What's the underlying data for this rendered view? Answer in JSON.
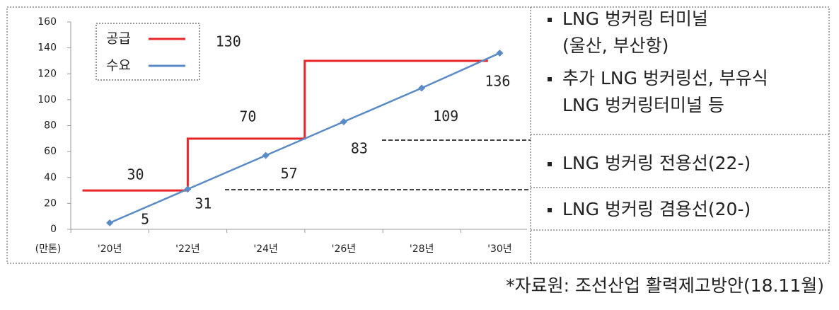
{
  "chart_data": {
    "type": "line",
    "y_unit_label": "(만톤)",
    "xlim": [
      19,
      30.7
    ],
    "xticks": [
      {
        "value": 20,
        "label": "'20년"
      },
      {
        "value": 22,
        "label": "'22년"
      },
      {
        "value": 24,
        "label": "'24년"
      },
      {
        "value": 26,
        "label": "'26년"
      },
      {
        "value": 28,
        "label": "'28년"
      },
      {
        "value": 30,
        "label": "'30년"
      }
    ],
    "ylim": [
      0,
      160
    ],
    "yticks": [
      0,
      20,
      40,
      60,
      80,
      100,
      120,
      140,
      160
    ],
    "legend": "top-left",
    "series": [
      {
        "name": "공급",
        "color": "#e8262a",
        "step": true,
        "x": [
          19.3,
          22,
          22,
          25,
          25,
          29.7
        ],
        "values": [
          30,
          30,
          70,
          70,
          130,
          130
        ]
      },
      {
        "name": "수요",
        "color": "#5b8bc6",
        "x": [
          20,
          22,
          24,
          26,
          28,
          30
        ],
        "values": [
          5,
          31,
          57,
          83,
          109,
          136
        ]
      }
    ]
  },
  "side_table": {
    "rows": [
      {
        "items": [
          [
            "LNG 벙커링 터미널",
            "(울산, 부산항)"
          ],
          [
            "추가 LNG 벙커링선, 부유식",
            "LNG 벙커링터미널 등"
          ]
        ]
      },
      {
        "items": [
          [
            "LNG 벙커링 전용선(22-)"
          ]
        ]
      },
      {
        "items": [
          [
            "LNG 벙커링 겸용선(20-)"
          ]
        ]
      }
    ]
  },
  "source": "*자료원: 조선산업 활력제고방안(18.11월)"
}
